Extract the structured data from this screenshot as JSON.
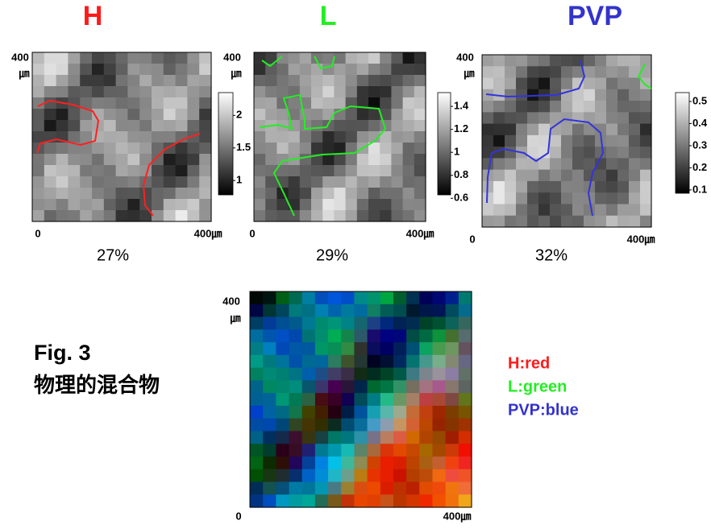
{
  "panels": [
    {
      "title": "H",
      "title_color": "#ff1a1a",
      "percent": "27%",
      "axis": {
        "y_top": "400",
        "y_unit": "㎛",
        "x_start": "0",
        "x_end": "400㎛"
      },
      "colorbar": {
        "range": [
          0.78,
          2.35
        ],
        "ticks": [
          2,
          1.5,
          1
        ]
      }
    },
    {
      "title": "L",
      "title_color": "#22ee22",
      "percent": "29%",
      "axis": {
        "y_top": "400",
        "y_unit": "㎛",
        "x_start": "0",
        "x_end": "400㎛"
      },
      "colorbar": {
        "range": [
          0.63,
          1.52
        ],
        "ticks": [
          1.4,
          1.2,
          1,
          0.8,
          0.6
        ]
      }
    },
    {
      "title": "PVP",
      "title_color": "#3333cc",
      "percent": "32%",
      "axis": {
        "y_top": "400",
        "y_unit": "㎛",
        "x_start": "0",
        "x_end": "400㎛"
      },
      "colorbar": {
        "range": [
          0.085,
          0.54
        ],
        "ticks": [
          0.5,
          0.4,
          0.3,
          0.2,
          0.1
        ]
      }
    }
  ],
  "composite": {
    "axis": {
      "y_top": "400",
      "y_unit": "㎛",
      "x_start": "0",
      "x_end": "400㎛"
    }
  },
  "figure": {
    "label": "Fig. 3",
    "caption": "物理的混合物"
  },
  "legend": [
    {
      "text": "H:red",
      "color": "#ff1a1a"
    },
    {
      "text": "L:green",
      "color": "#22ee22"
    },
    {
      "text": "PVP:blue",
      "color": "#3333cc"
    }
  ]
}
